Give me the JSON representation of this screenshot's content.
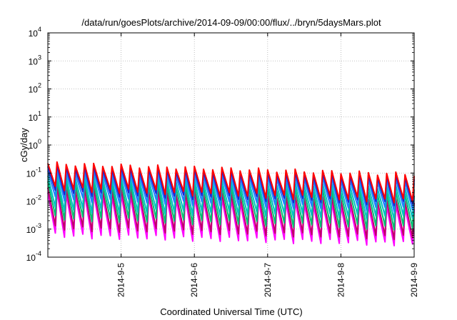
{
  "chart_data": {
    "type": "line",
    "title": "/data/run/goesPlots/archive/2014-09-09/00:00/flux/../bryn/5daysMars.plot",
    "xlabel": "Coordinated Universal Time (UTC)",
    "ylabel": "cGy/day",
    "x_scale": "time",
    "x_range": [
      "2014-09-04T00:00",
      "2014-09-09T00:00"
    ],
    "x_ticks": [
      "2014-9-5",
      "2014-9-6",
      "2014-9-7",
      "2014-9-8",
      "2014-9-9"
    ],
    "y_scale": "log",
    "ylim": [
      0.0001,
      10000
    ],
    "y_ticks": [
      {
        "mantissa": "10",
        "exp": "-4"
      },
      {
        "mantissa": "10",
        "exp": "-3"
      },
      {
        "mantissa": "10",
        "exp": "-2"
      },
      {
        "mantissa": "10",
        "exp": "-1"
      },
      {
        "mantissa": "10",
        "exp": "0"
      },
      {
        "mantissa": "10",
        "exp": "1"
      },
      {
        "mantissa": "10",
        "exp": "2"
      },
      {
        "mantissa": "10",
        "exp": "3"
      },
      {
        "mantissa": "10",
        "exp": "4"
      }
    ],
    "grid": true,
    "legend": "none",
    "sawtooth_period_hours": 3,
    "series": [
      {
        "color": "#ff00ff",
        "peak": [
          0.02,
          0.006
        ],
        "trough": [
          0.0006,
          0.0003
        ]
      },
      {
        "color": "#c0006a",
        "peak": [
          0.03,
          0.01
        ],
        "trough": [
          0.0011,
          0.0005
        ]
      },
      {
        "color": "#00c070",
        "peak": [
          0.05,
          0.018
        ],
        "trough": [
          0.0025,
          0.0011
        ]
      },
      {
        "color": "#00c0c0",
        "peak": [
          0.08,
          0.03
        ],
        "trough": [
          0.005,
          0.0025
        ]
      },
      {
        "color": "#2080ff",
        "peak": [
          0.12,
          0.05
        ],
        "trough": [
          0.012,
          0.005
        ]
      },
      {
        "color": "#2020d0",
        "peak": [
          0.17,
          0.07
        ],
        "trough": [
          0.02,
          0.008
        ]
      },
      {
        "color": "#ff0000",
        "peak": [
          0.22,
          0.09
        ],
        "trough": [
          0.028,
          0.01
        ]
      }
    ]
  }
}
